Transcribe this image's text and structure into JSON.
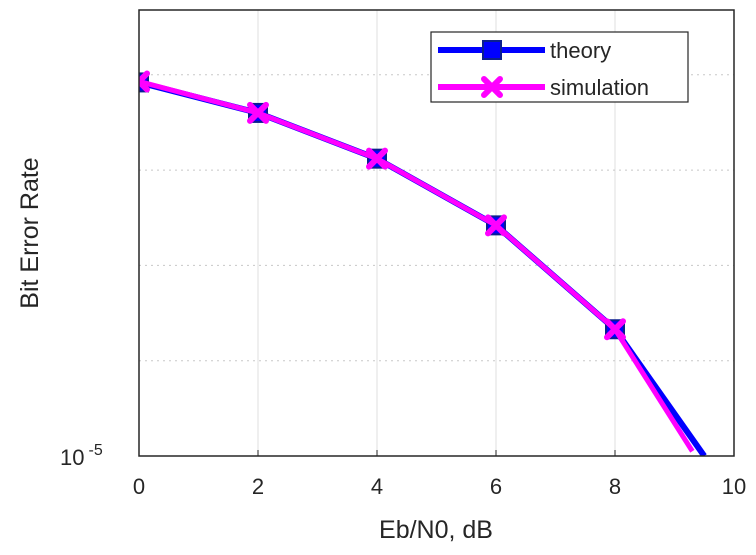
{
  "chart_data": {
    "type": "line",
    "xlabel": "Eb/N0, dB",
    "ylabel": "Bit Error Rate",
    "x_ticks": [
      "0",
      "2",
      "4",
      "6",
      "8",
      "10"
    ],
    "y_tick_label": {
      "base": "10",
      "exponent": "-5"
    },
    "xlim": [
      0,
      10
    ],
    "y_scale": "log",
    "grid": true,
    "legend_position": "top-right",
    "series": [
      {
        "name": "theory",
        "color": "#0000ff",
        "marker": "square",
        "x": [
          0,
          2,
          4,
          6,
          8,
          9.5
        ],
        "y_decades_above_1e-5": [
          3.92,
          3.6,
          3.12,
          2.42,
          1.33,
          0
        ]
      },
      {
        "name": "simulation",
        "color": "#ff00ff",
        "marker": "x",
        "x": [
          0,
          2,
          4,
          6,
          8,
          9.3
        ],
        "y_decades_above_1e-5": [
          3.93,
          3.6,
          3.12,
          2.42,
          1.33,
          0.05
        ]
      }
    ]
  }
}
